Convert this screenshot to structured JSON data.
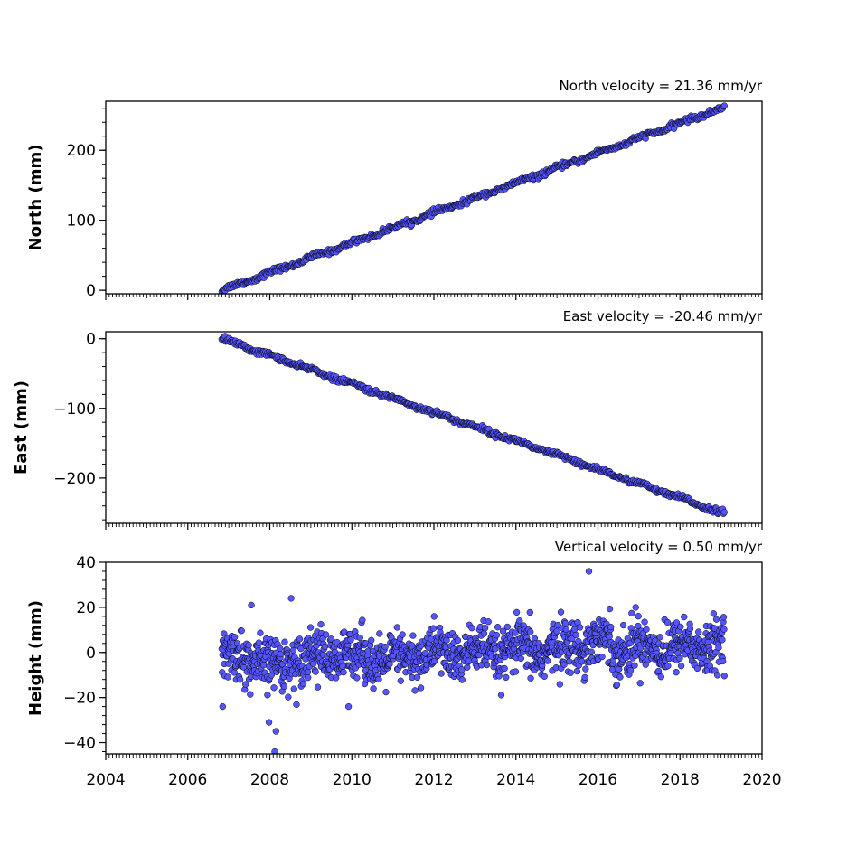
{
  "chart_data": {
    "type": "scatter",
    "x_ticks": [
      2004,
      2006,
      2008,
      2010,
      2012,
      2014,
      2016,
      2018,
      2020
    ],
    "xlim": [
      2004,
      2020
    ],
    "marker_fill": "#5555ff",
    "marker_edge": "#000000",
    "panels": [
      {
        "id": "north",
        "title": "North velocity = 21.36 mm/yr",
        "ylabel": "North (mm)",
        "ylim": [
          -5,
          270
        ],
        "y_ticks": [
          0,
          100,
          200
        ],
        "y_tick_labels": [
          "0",
          "100",
          "200"
        ],
        "start_year": 2006.83,
        "end_year": 2019.08,
        "rate_mm_per_yr": 21.36,
        "scatter_mm": 1.8,
        "points": 620
      },
      {
        "id": "east",
        "title": "East velocity = -20.46 mm/yr",
        "ylabel": "East (mm)",
        "ylim": [
          -265,
          10
        ],
        "y_ticks": [
          0,
          -100,
          -200
        ],
        "y_tick_labels": [
          "0",
          "−100",
          "−200"
        ],
        "start_year": 2006.83,
        "end_year": 2019.08,
        "rate_mm_per_yr": -20.46,
        "scatter_mm": 1.8,
        "points": 620
      },
      {
        "id": "height",
        "title": "Vertical velocity = 0.50 mm/yr",
        "ylabel": "Height (mm)",
        "ylim": [
          -45,
          40
        ],
        "y_ticks": [
          40,
          20,
          0,
          -20,
          -40
        ],
        "y_tick_labels": [
          "40",
          "20",
          "0",
          "−20",
          "−40"
        ],
        "start_year": 2006.83,
        "end_year": 2019.08,
        "rate_mm_per_yr": 0.5,
        "scatter_mm": 5.5,
        "points": 1400,
        "outliers": [
          {
            "x": 2015.78,
            "y": 36
          },
          {
            "x": 2008.12,
            "y": -44
          },
          {
            "x": 2008.15,
            "y": -35
          },
          {
            "x": 2007.98,
            "y": -31
          },
          {
            "x": 2006.85,
            "y": -24
          },
          {
            "x": 2009.92,
            "y": -24
          },
          {
            "x": 2008.52,
            "y": 24
          },
          {
            "x": 2007.55,
            "y": 21
          },
          {
            "x": 2016.92,
            "y": 20
          }
        ]
      }
    ]
  }
}
